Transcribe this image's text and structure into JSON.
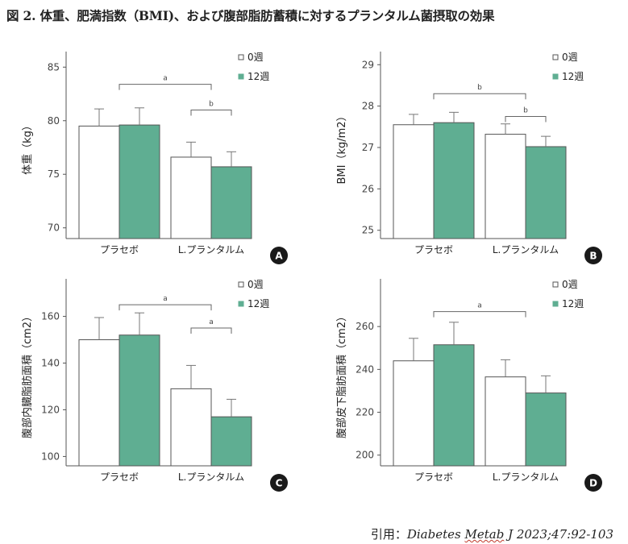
{
  "figure_title": "図 2. 体重、肥満指数（BMI)、および腹部脂肪蓄積に対するプランタルム菌摂取の効果",
  "citation": {
    "prefix": "引用：",
    "journal_a": "Diabetes ",
    "journal_b": "Metab",
    "journal_c": " J 2023;47:92-103"
  },
  "colors": {
    "week0": "#ffffff",
    "week12": "#5fae92",
    "axis": "#555555"
  },
  "chart_data": [
    {
      "panel": "A",
      "type": "bar",
      "ylabel": "体重（kg）",
      "ylim": [
        69,
        86
      ],
      "yticks": [
        70,
        75,
        80,
        85
      ],
      "categories": [
        "プラセボ",
        "L.プランタルム"
      ],
      "series": [
        {
          "name": "0週",
          "values": [
            79.5,
            76.6
          ],
          "errors": [
            1.6,
            1.4
          ]
        },
        {
          "name": "12週",
          "values": [
            79.6,
            75.7
          ],
          "errors": [
            1.6,
            1.4
          ]
        }
      ],
      "significance": [
        {
          "label": "a",
          "from": "プラセボ",
          "to": "L.プランタルム",
          "y": 83.4
        },
        {
          "label": "b",
          "within": "L.プランタルム",
          "y": 81.0
        }
      ],
      "legend": "top-right",
      "grid": false
    },
    {
      "panel": "B",
      "type": "bar",
      "ylabel": "BMI（kg/m2）",
      "ylim": [
        24.8,
        29.2
      ],
      "yticks": [
        25,
        26,
        27,
        28,
        29
      ],
      "categories": [
        "プラセボ",
        "L.プランタルム"
      ],
      "series": [
        {
          "name": "0週",
          "values": [
            27.55,
            27.32
          ],
          "errors": [
            0.25,
            0.25
          ]
        },
        {
          "name": "12週",
          "values": [
            27.6,
            27.02
          ],
          "errors": [
            0.25,
            0.25
          ]
        }
      ],
      "significance": [
        {
          "label": "b",
          "from": "プラセボ",
          "to": "L.プランタルム",
          "y": 28.3
        },
        {
          "label": "b",
          "within": "L.プランタルム",
          "y": 27.75
        }
      ],
      "legend": "top-right",
      "grid": false
    },
    {
      "panel": "C",
      "type": "bar",
      "ylabel": "腹部内臓脂肪面積（cm2）",
      "ylim": [
        96,
        174
      ],
      "yticks": [
        100,
        120,
        140,
        160
      ],
      "categories": [
        "プラセボ",
        "L.プランタルム"
      ],
      "series": [
        {
          "name": "0週",
          "values": [
            150,
            129
          ],
          "errors": [
            9.5,
            10
          ]
        },
        {
          "name": "12週",
          "values": [
            152,
            117
          ],
          "errors": [
            9.5,
            7.5
          ]
        }
      ],
      "significance": [
        {
          "label": "a",
          "from": "プラセボ",
          "to": "L.プランタルム",
          "y": 165
        },
        {
          "label": "a",
          "within": "L.プランタルム",
          "y": 155
        }
      ],
      "legend": "top-right",
      "grid": false
    },
    {
      "panel": "D",
      "type": "bar",
      "ylabel": "腹部皮下脂肪面積（cm2）",
      "ylim": [
        195,
        280
      ],
      "yticks": [
        200,
        220,
        240,
        260
      ],
      "categories": [
        "プラセボ",
        "L.プランタルム"
      ],
      "series": [
        {
          "name": "0週",
          "values": [
            244,
            236.5
          ],
          "errors": [
            10.5,
            8
          ]
        },
        {
          "name": "12週",
          "values": [
            251.5,
            229
          ],
          "errors": [
            10.5,
            8
          ]
        }
      ],
      "significance": [
        {
          "label": "a",
          "from": "プラセボ",
          "to": "L.プランタルム",
          "y": 267
        }
      ],
      "legend": "top-right",
      "grid": false
    }
  ]
}
